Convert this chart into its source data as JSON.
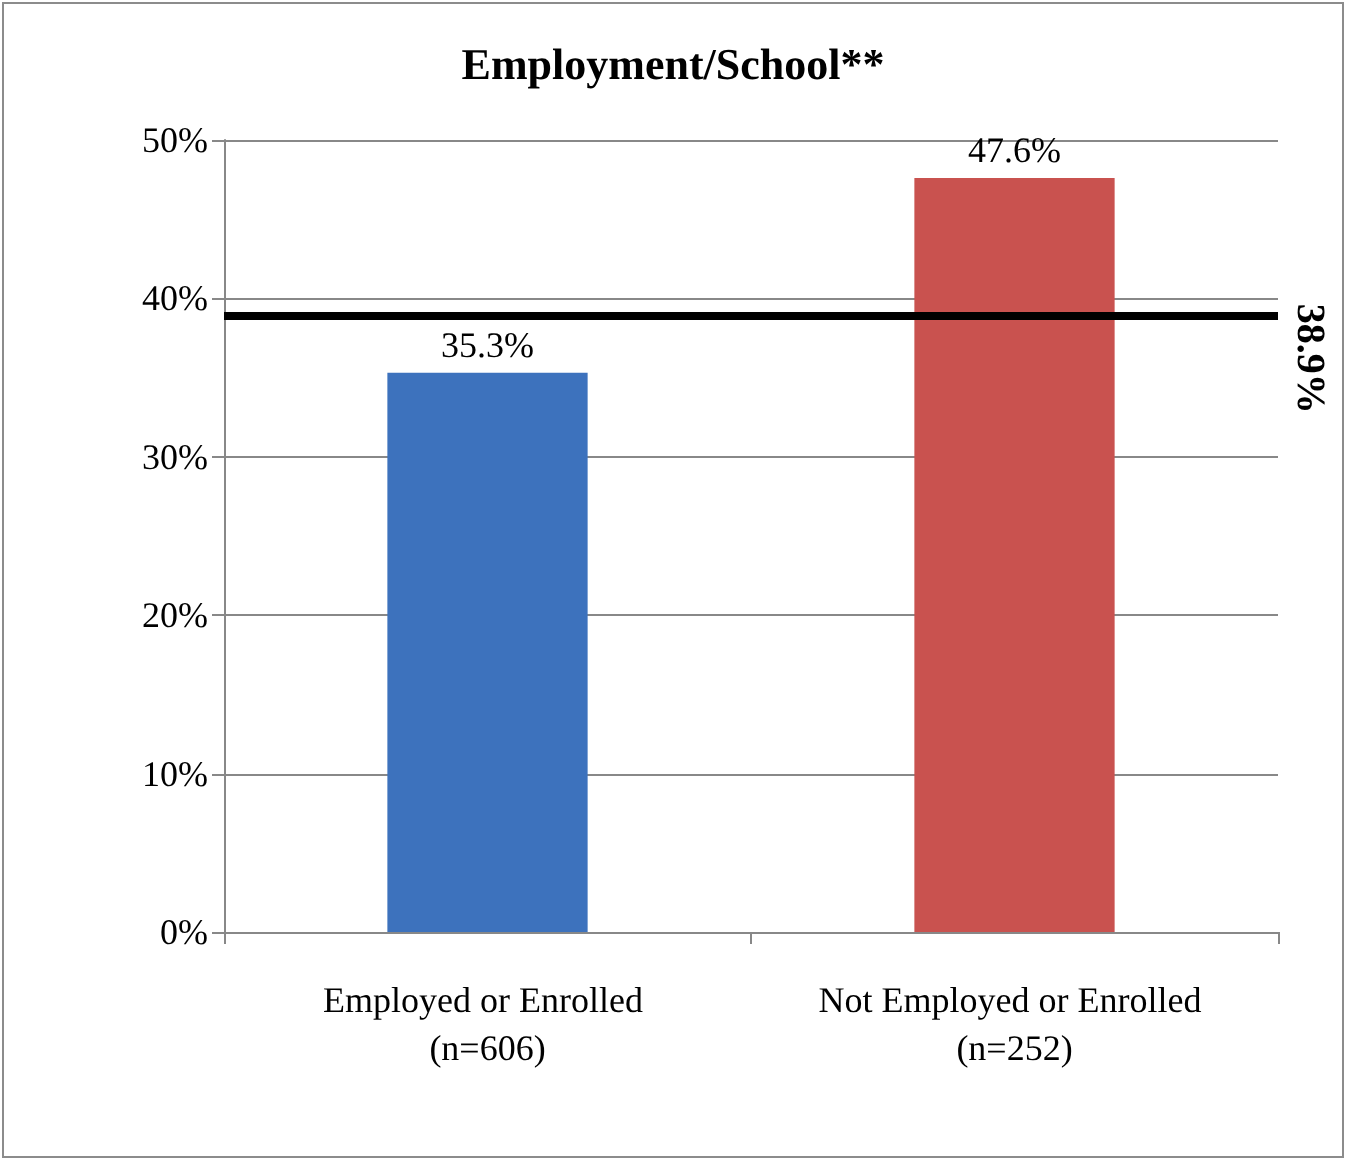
{
  "chart_data": {
    "type": "bar",
    "title": "Employment/School**",
    "categories": [
      "Employed or Enrolled (n=606)",
      "Not Employed or Enrolled (n=252)"
    ],
    "values": [
      35.3,
      47.6
    ],
    "colors": [
      "#3d72bd",
      "#c9524f"
    ],
    "value_labels": [
      "35.3%",
      "47.6%"
    ],
    "ylim": [
      0,
      50
    ],
    "yticks": [
      {
        "value": 0,
        "label": "0%"
      },
      {
        "value": 10,
        "label": "10%"
      },
      {
        "value": 20,
        "label": "20%"
      },
      {
        "value": 30,
        "label": "30%"
      },
      {
        "value": 40,
        "label": "40%"
      },
      {
        "value": 50,
        "label": "50%"
      }
    ],
    "grid": "y",
    "ref_lines": [
      {
        "axis": "y",
        "value": 38.9,
        "label": "38.9%",
        "color": "#000000"
      }
    ]
  }
}
